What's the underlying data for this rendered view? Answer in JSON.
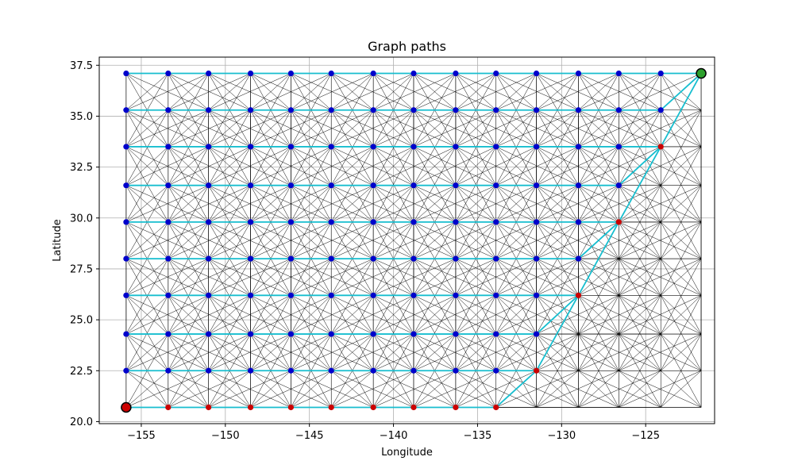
{
  "chart_data": {
    "type": "scatter",
    "title": "Graph paths",
    "xlabel": "Longitude",
    "ylabel": "Latitude",
    "xlim": [
      -157.5,
      -120.9
    ],
    "ylim": [
      19.9,
      37.9
    ],
    "grid": true,
    "xticks": [
      -155,
      -150,
      -145,
      -140,
      -135,
      -130,
      -125
    ],
    "xtick_labels": [
      "−155",
      "−150",
      "−145",
      "−140",
      "−135",
      "−130",
      "−125"
    ],
    "yticks": [
      20.0,
      22.5,
      25.0,
      27.5,
      30.0,
      32.5,
      35.0,
      37.5
    ],
    "ytick_labels": [
      "20.0",
      "22.5",
      "25.0",
      "27.5",
      "30.0",
      "32.5",
      "35.0",
      "37.5"
    ],
    "grid_x_values": [
      -155.9,
      -153.4,
      -151.0,
      -148.5,
      -146.1,
      -143.7,
      -141.2,
      -138.8,
      -136.3,
      -133.9,
      -131.5,
      -129.0,
      -126.6,
      -124.1,
      -121.7
    ],
    "grid_y_values": [
      20.7,
      22.5,
      24.3,
      26.2,
      28.0,
      29.8,
      31.6,
      33.5,
      35.3,
      37.1
    ],
    "start_node": {
      "x": -155.9,
      "y": 20.7
    },
    "end_node": {
      "x": -121.7,
      "y": 37.1
    },
    "colors": {
      "visited_node": "#0000cc",
      "path_node": "#cc0000",
      "path_line": "#17becf",
      "edge": "#000000",
      "end_node": "#2ca02c",
      "grid": "#b0b0b0"
    },
    "paths": [
      [
        [
          -155.9,
          20.7
        ],
        [
          -133.9,
          20.7
        ],
        [
          -131.5,
          22.5
        ],
        [
          -129.0,
          26.2
        ],
        [
          -126.6,
          29.8
        ],
        [
          -124.1,
          33.5
        ],
        [
          -121.7,
          37.1
        ]
      ],
      [
        [
          -155.9,
          22.5
        ],
        [
          -131.5,
          22.5
        ]
      ],
      [
        [
          -155.9,
          24.3
        ],
        [
          -131.5,
          24.3
        ],
        [
          -129.0,
          26.2
        ]
      ],
      [
        [
          -155.9,
          26.2
        ],
        [
          -129.0,
          26.2
        ]
      ],
      [
        [
          -155.9,
          28.0
        ],
        [
          -129.0,
          28.0
        ],
        [
          -126.6,
          29.8
        ]
      ],
      [
        [
          -155.9,
          29.8
        ],
        [
          -126.6,
          29.8
        ]
      ],
      [
        [
          -155.9,
          31.6
        ],
        [
          -126.6,
          31.6
        ],
        [
          -124.1,
          33.5
        ]
      ],
      [
        [
          -155.9,
          33.5
        ],
        [
          -124.1,
          33.5
        ]
      ],
      [
        [
          -155.9,
          35.3
        ],
        [
          -124.1,
          35.3
        ],
        [
          -121.7,
          37.1
        ]
      ],
      [
        [
          -155.9,
          37.1
        ],
        [
          -121.7,
          37.1
        ]
      ]
    ],
    "red_nodes": [
      [
        -153.4,
        20.7
      ],
      [
        -151.0,
        20.7
      ],
      [
        -148.5,
        20.7
      ],
      [
        -146.1,
        20.7
      ],
      [
        -143.7,
        20.7
      ],
      [
        -141.2,
        20.7
      ],
      [
        -138.8,
        20.7
      ],
      [
        -136.3,
        20.7
      ],
      [
        -133.9,
        20.7
      ],
      [
        -131.5,
        22.5
      ],
      [
        -129.0,
        26.2
      ],
      [
        -126.6,
        29.8
      ],
      [
        -124.1,
        33.5
      ]
    ],
    "blue_nodes": [
      [
        -155.9,
        22.5
      ],
      [
        -153.4,
        22.5
      ],
      [
        -151.0,
        22.5
      ],
      [
        -148.5,
        22.5
      ],
      [
        -146.1,
        22.5
      ],
      [
        -143.7,
        22.5
      ],
      [
        -141.2,
        22.5
      ],
      [
        -138.8,
        22.5
      ],
      [
        -136.3,
        22.5
      ],
      [
        -133.9,
        22.5
      ],
      [
        -155.9,
        24.3
      ],
      [
        -153.4,
        24.3
      ],
      [
        -151.0,
        24.3
      ],
      [
        -148.5,
        24.3
      ],
      [
        -146.1,
        24.3
      ],
      [
        -143.7,
        24.3
      ],
      [
        -141.2,
        24.3
      ],
      [
        -138.8,
        24.3
      ],
      [
        -136.3,
        24.3
      ],
      [
        -133.9,
        24.3
      ],
      [
        -131.5,
        24.3
      ],
      [
        -155.9,
        26.2
      ],
      [
        -153.4,
        26.2
      ],
      [
        -151.0,
        26.2
      ],
      [
        -148.5,
        26.2
      ],
      [
        -146.1,
        26.2
      ],
      [
        -143.7,
        26.2
      ],
      [
        -141.2,
        26.2
      ],
      [
        -138.8,
        26.2
      ],
      [
        -136.3,
        26.2
      ],
      [
        -133.9,
        26.2
      ],
      [
        -131.5,
        26.2
      ],
      [
        -155.9,
        28.0
      ],
      [
        -153.4,
        28.0
      ],
      [
        -151.0,
        28.0
      ],
      [
        -148.5,
        28.0
      ],
      [
        -146.1,
        28.0
      ],
      [
        -143.7,
        28.0
      ],
      [
        -141.2,
        28.0
      ],
      [
        -138.8,
        28.0
      ],
      [
        -136.3,
        28.0
      ],
      [
        -133.9,
        28.0
      ],
      [
        -131.5,
        28.0
      ],
      [
        -129.0,
        28.0
      ],
      [
        -155.9,
        29.8
      ],
      [
        -153.4,
        29.8
      ],
      [
        -151.0,
        29.8
      ],
      [
        -148.5,
        29.8
      ],
      [
        -146.1,
        29.8
      ],
      [
        -143.7,
        29.8
      ],
      [
        -141.2,
        29.8
      ],
      [
        -138.8,
        29.8
      ],
      [
        -136.3,
        29.8
      ],
      [
        -133.9,
        29.8
      ],
      [
        -131.5,
        29.8
      ],
      [
        -129.0,
        29.8
      ],
      [
        -155.9,
        31.6
      ],
      [
        -153.4,
        31.6
      ],
      [
        -151.0,
        31.6
      ],
      [
        -148.5,
        31.6
      ],
      [
        -146.1,
        31.6
      ],
      [
        -143.7,
        31.6
      ],
      [
        -141.2,
        31.6
      ],
      [
        -138.8,
        31.6
      ],
      [
        -136.3,
        31.6
      ],
      [
        -133.9,
        31.6
      ],
      [
        -131.5,
        31.6
      ],
      [
        -129.0,
        31.6
      ],
      [
        -126.6,
        31.6
      ],
      [
        -155.9,
        33.5
      ],
      [
        -153.4,
        33.5
      ],
      [
        -151.0,
        33.5
      ],
      [
        -148.5,
        33.5
      ],
      [
        -146.1,
        33.5
      ],
      [
        -143.7,
        33.5
      ],
      [
        -141.2,
        33.5
      ],
      [
        -138.8,
        33.5
      ],
      [
        -136.3,
        33.5
      ],
      [
        -133.9,
        33.5
      ],
      [
        -131.5,
        33.5
      ],
      [
        -129.0,
        33.5
      ],
      [
        -126.6,
        33.5
      ],
      [
        -155.9,
        35.3
      ],
      [
        -153.4,
        35.3
      ],
      [
        -151.0,
        35.3
      ],
      [
        -148.5,
        35.3
      ],
      [
        -146.1,
        35.3
      ],
      [
        -143.7,
        35.3
      ],
      [
        -141.2,
        35.3
      ],
      [
        -138.8,
        35.3
      ],
      [
        -136.3,
        35.3
      ],
      [
        -133.9,
        35.3
      ],
      [
        -131.5,
        35.3
      ],
      [
        -129.0,
        35.3
      ],
      [
        -126.6,
        35.3
      ],
      [
        -124.1,
        35.3
      ],
      [
        -155.9,
        37.1
      ],
      [
        -153.4,
        37.1
      ],
      [
        -151.0,
        37.1
      ],
      [
        -148.5,
        37.1
      ],
      [
        -146.1,
        37.1
      ],
      [
        -143.7,
        37.1
      ],
      [
        -141.2,
        37.1
      ],
      [
        -138.8,
        37.1
      ],
      [
        -136.3,
        37.1
      ],
      [
        -133.9,
        37.1
      ],
      [
        -131.5,
        37.1
      ],
      [
        -129.0,
        37.1
      ],
      [
        -126.6,
        37.1
      ],
      [
        -124.1,
        37.1
      ]
    ]
  }
}
